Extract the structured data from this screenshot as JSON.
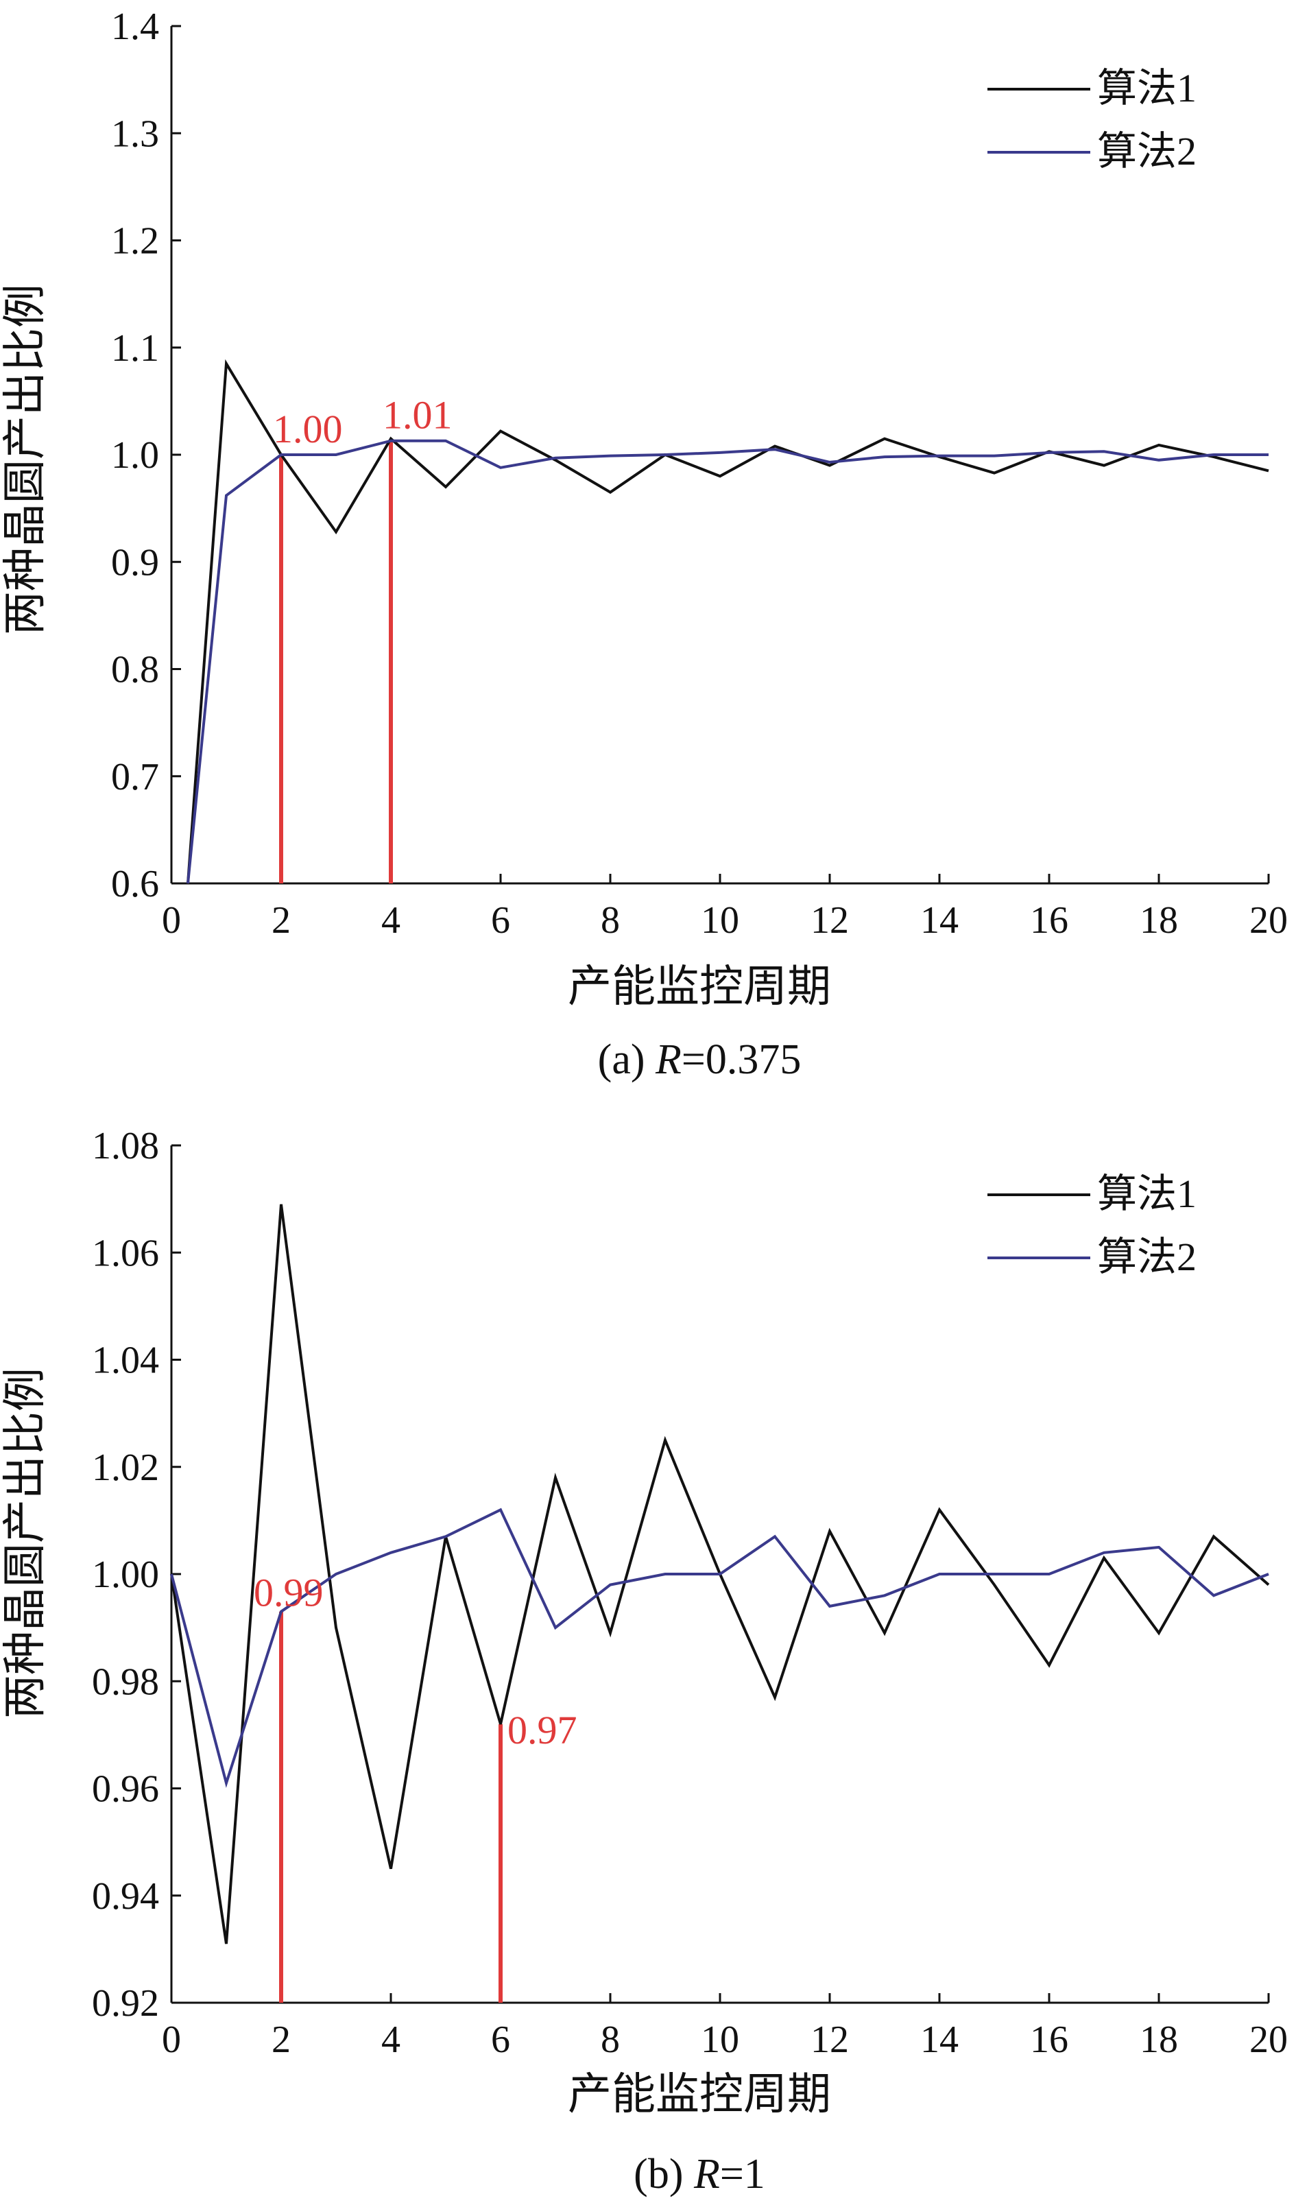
{
  "chart_data": [
    {
      "type": "line",
      "caption": "(a) R=0.375",
      "caption_prefix": "(a) ",
      "caption_var": "R",
      "caption_value": "=0.375",
      "xlabel": "产能监控周期",
      "ylabel": "两种晶圆产出比例",
      "xlim": [
        0,
        20
      ],
      "ylim": [
        0.6,
        1.4
      ],
      "x_ticks": [
        "0",
        "2",
        "4",
        "6",
        "8",
        "10",
        "12",
        "14",
        "16",
        "18",
        "20"
      ],
      "y_ticks": [
        "0.6",
        "0.7",
        "0.8",
        "0.9",
        "1.0",
        "1.1",
        "1.2",
        "1.3",
        "1.4"
      ],
      "legend_position": "top-right",
      "series": [
        {
          "name": "算法1",
          "color": "#111111",
          "x": [
            0.3,
            1,
            2,
            3,
            4,
            5,
            6,
            7,
            8,
            9,
            10,
            11,
            12,
            13,
            14,
            15,
            16,
            17,
            18,
            19,
            20
          ],
          "y": [
            0.6,
            1.085,
            1.0,
            0.928,
            1.015,
            0.97,
            1.022,
            0.995,
            0.965,
            1.0,
            0.98,
            1.008,
            0.99,
            1.015,
            0.998,
            0.983,
            1.003,
            0.99,
            1.009,
            0.998,
            0.985
          ]
        },
        {
          "name": "算法2",
          "color": "#3a3a8c",
          "x": [
            0.3,
            1,
            2,
            3,
            4,
            5,
            6,
            7,
            8,
            9,
            10,
            11,
            12,
            13,
            14,
            15,
            16,
            17,
            18,
            19,
            20
          ],
          "y": [
            0.6,
            0.962,
            1.0,
            1.0,
            1.013,
            1.013,
            0.988,
            0.997,
            0.999,
            1.0,
            1.002,
            1.005,
            0.993,
            0.998,
            0.999,
            0.999,
            1.002,
            1.003,
            0.995,
            1.0,
            1.0
          ]
        }
      ],
      "annotations": [
        {
          "x": 2,
          "y": 1.0,
          "label": "1.00",
          "color": "#e03a3a"
        },
        {
          "x": 4,
          "y": 1.013,
          "label": "1.01",
          "color": "#e03a3a"
        }
      ]
    },
    {
      "type": "line",
      "caption": "(b) R=1",
      "caption_prefix": "(b) ",
      "caption_var": "R",
      "caption_value": "=1",
      "xlabel": "产能监控周期",
      "ylabel": "两种晶圆产出比例",
      "xlim": [
        0,
        20
      ],
      "ylim": [
        0.92,
        1.08
      ],
      "x_ticks": [
        "0",
        "2",
        "4",
        "6",
        "8",
        "10",
        "12",
        "14",
        "16",
        "18",
        "20"
      ],
      "y_ticks": [
        "0.92",
        "0.94",
        "0.96",
        "0.98",
        "1.00",
        "1.02",
        "1.04",
        "1.06",
        "1.08"
      ],
      "legend_position": "top-right",
      "series": [
        {
          "name": "算法1",
          "color": "#111111",
          "x": [
            0,
            1,
            2,
            3,
            4,
            5,
            6,
            7,
            8,
            9,
            10,
            11,
            12,
            13,
            14,
            15,
            16,
            17,
            18,
            19,
            20
          ],
          "y": [
            1.0,
            0.931,
            1.069,
            0.99,
            0.945,
            1.007,
            0.972,
            1.018,
            0.989,
            1.025,
            1.0,
            0.977,
            1.008,
            0.989,
            1.012,
            0.998,
            0.983,
            1.003,
            0.989,
            1.007,
            0.998
          ]
        },
        {
          "name": "算法2",
          "color": "#3a3a8c",
          "x": [
            0,
            1,
            2,
            3,
            4,
            5,
            6,
            7,
            8,
            9,
            10,
            11,
            12,
            13,
            14,
            15,
            16,
            17,
            18,
            19,
            20
          ],
          "y": [
            1.0,
            0.961,
            0.993,
            1.0,
            1.004,
            1.007,
            1.012,
            0.99,
            0.998,
            1.0,
            1.0,
            1.007,
            0.994,
            0.996,
            1.0,
            1.0,
            1.0,
            1.004,
            1.005,
            0.996,
            1.0
          ]
        }
      ],
      "annotations": [
        {
          "x": 2,
          "y": 0.993,
          "label": "0.99",
          "color": "#e03a3a"
        },
        {
          "x": 6,
          "y": 0.972,
          "label": "0.97",
          "color": "#e03a3a"
        }
      ]
    }
  ]
}
